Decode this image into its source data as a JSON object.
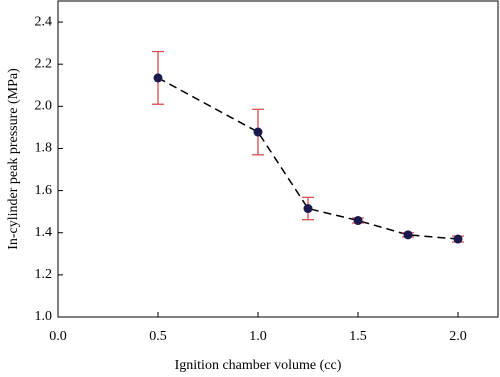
{
  "chart_data": {
    "type": "line",
    "xlabel": "Ignition chamber volume (cc)",
    "ylabel": "In-cylinder peak pressure (MPa)",
    "x": [
      0.5,
      1.0,
      1.25,
      1.5,
      1.75,
      2.0
    ],
    "series": [
      {
        "values": [
          2.135,
          1.878,
          1.515,
          1.458,
          1.39,
          1.37
        ],
        "errors": [
          0.125,
          0.108,
          0.053,
          0.012,
          0.01,
          0.014
        ],
        "color": "#000000",
        "marker_color": "#1a1a4e",
        "error_color": "#d94f4f"
      }
    ],
    "xlim": [
      0,
      2.2
    ],
    "xticks": [
      {
        "value": 0,
        "label": "0.0"
      },
      0.5,
      {
        "value": 1,
        "label": "1.0"
      },
      1.5,
      {
        "value": 2,
        "label": "2.0"
      }
    ],
    "ylim": [
      1.0,
      2.5
    ],
    "yticks": [
      {
        "value": 1,
        "label": "1.0"
      },
      1.2,
      1.4,
      1.6,
      1.8,
      {
        "value": 2,
        "label": "2.0"
      },
      2.2,
      2.4
    ],
    "line_style": "dashed"
  }
}
